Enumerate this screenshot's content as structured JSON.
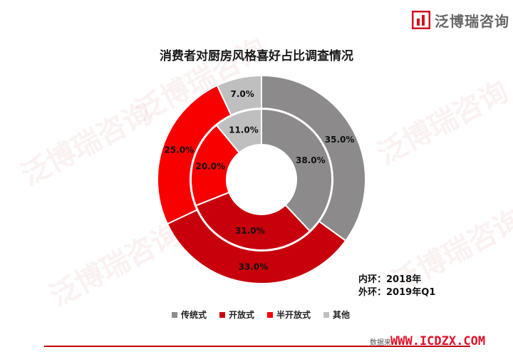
{
  "brand": {
    "name": "泛博瑞咨询",
    "watermark": "泛博瑞咨询"
  },
  "chart_data": {
    "type": "donut",
    "title": "消费者对厨房风格喜好占比调查情况",
    "categories": [
      "传统式",
      "开放式",
      "半开放式",
      "其他"
    ],
    "colors": [
      "#8c8a8b",
      "#c8000b",
      "#f90000",
      "#bfbfbf"
    ],
    "series": [
      {
        "name": "2018年",
        "ring": "inner",
        "values": [
          38.0,
          31.0,
          20.0,
          11.0
        ]
      },
      {
        "name": "2019年Q1",
        "ring": "outer",
        "values": [
          35.0,
          33.0,
          25.0,
          7.0
        ]
      }
    ],
    "labels": {
      "inner": [
        "38.0%",
        "31.0%",
        "20.0%",
        "11.0%"
      ],
      "outer": [
        "35.0%",
        "33.0%",
        "25.0%",
        "7.0%"
      ]
    },
    "ring_notes": [
      {
        "label": "内环：",
        "value": "2018年"
      },
      {
        "label": "外环：",
        "value": "2019年Q1"
      }
    ],
    "legend_position": "bottom"
  },
  "source": {
    "label": "数据来",
    "site": "WWW.ICDZX.COM"
  }
}
